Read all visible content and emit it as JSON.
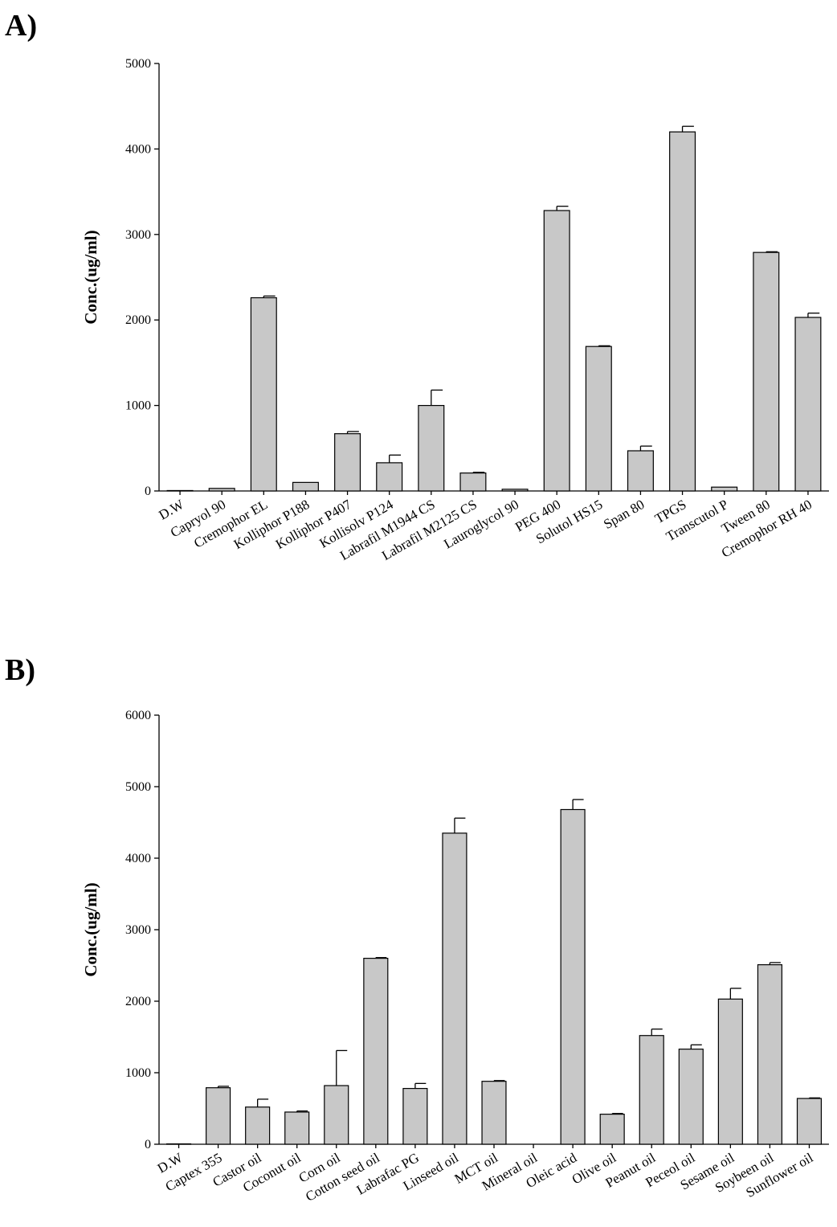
{
  "chart_data": [
    {
      "panel_label": "A)",
      "type": "bar",
      "ylabel": "Conc.(ug/ml)",
      "xlabel": "",
      "ylim": [
        0,
        5000
      ],
      "yticks": [
        0,
        1000,
        2000,
        3000,
        4000,
        5000
      ],
      "grid": false,
      "categories": [
        "D.W",
        "Capryol 90",
        "Cremophor EL",
        "Kolliphor P188",
        "Kolliphor P407",
        "Kollisolv P124",
        "Labrafil M1944 CS",
        "Labrafil M2125 CS",
        "Lauroglycol 90",
        "PEG 400",
        "Solutol HS15",
        "Span 80",
        "TPGS",
        "Transcutol P",
        "Tween 80",
        "Cremophor RH 40"
      ],
      "values": [
        5,
        30,
        2260,
        100,
        670,
        330,
        1000,
        210,
        20,
        3280,
        1690,
        470,
        4200,
        45,
        2790,
        2030
      ],
      "errors": [
        0,
        0,
        20,
        0,
        25,
        90,
        180,
        8,
        0,
        50,
        8,
        55,
        65,
        0,
        8,
        50
      ]
    },
    {
      "panel_label": "B)",
      "type": "bar",
      "ylabel": "Conc.(ug/ml)",
      "xlabel": "",
      "ylim": [
        0,
        6000
      ],
      "yticks": [
        0,
        1000,
        2000,
        3000,
        4000,
        5000,
        6000
      ],
      "grid": false,
      "categories": [
        "D.W",
        "Captex 355",
        "Castor oil",
        "Coconut oil",
        "Corn oil",
        "Cotton seed oil",
        "Labrafac PG",
        "Linseed oil",
        "MCT oil",
        "Mineral oil",
        "Oleic acid",
        "Olive oil",
        "Peanut oil",
        "Peceol oil",
        "Sesame oil",
        "Soybeen oil",
        "Sunflower oil"
      ],
      "values": [
        5,
        790,
        520,
        450,
        820,
        2600,
        780,
        4350,
        880,
        0,
        4680,
        420,
        1520,
        1330,
        2030,
        2510,
        640
      ],
      "errors": [
        0,
        20,
        110,
        15,
        490,
        10,
        70,
        210,
        10,
        0,
        140,
        10,
        90,
        60,
        150,
        30,
        8
      ]
    }
  ]
}
